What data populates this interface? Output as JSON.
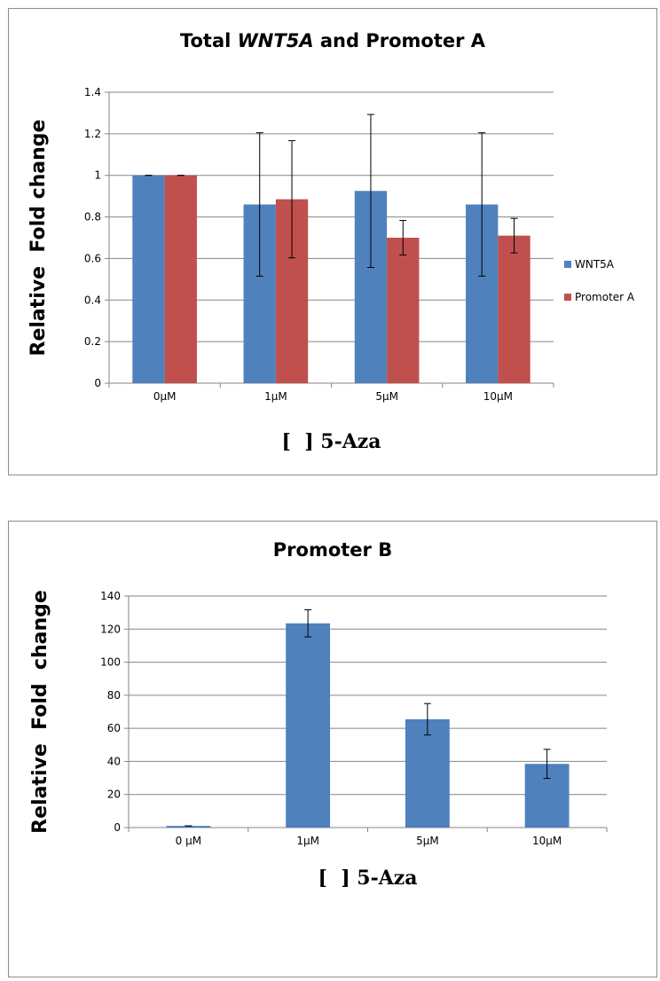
{
  "chart_data": [
    {
      "type": "bar",
      "title": "Total WNT5A and Promoter A",
      "title_parts": {
        "prefix": "Total ",
        "italic": "WNT5A",
        "suffix": " and Promoter A"
      },
      "categories": [
        "0µM",
        "1µM",
        "5µM",
        "10µM"
      ],
      "series": [
        {
          "name": "WNT5A",
          "color": "#4f81bd",
          "values": [
            1.0,
            0.86,
            0.925,
            0.86
          ],
          "errors": [
            0.0,
            0.345,
            0.368,
            0.345
          ]
        },
        {
          "name": "Promoter A",
          "color": "#c0504d",
          "values": [
            1.0,
            0.885,
            0.7,
            0.71
          ],
          "errors": [
            0.0,
            0.282,
            0.083,
            0.083
          ]
        }
      ],
      "xlabel": "[  ] 5-Aza",
      "ylabel": "Relative  Fold change",
      "ylim": [
        0,
        1.4
      ],
      "yticks": [
        "0",
        "0.2",
        "0.4",
        "0.6",
        "0.8",
        "1",
        "1.2",
        "1.4"
      ],
      "ytick_values": [
        0,
        0.2,
        0.4,
        0.6,
        0.8,
        1.0,
        1.2,
        1.4
      ],
      "grid": true,
      "legend_position": "right"
    },
    {
      "type": "bar",
      "title": "Promoter B",
      "categories": [
        "0 µM",
        "1µM",
        "5µM",
        "10µM"
      ],
      "series": [
        {
          "name": "",
          "color": "#4f81bd",
          "values": [
            1,
            123.5,
            65.5,
            38.5
          ],
          "errors": [
            0,
            8.2,
            9.5,
            8.8
          ]
        }
      ],
      "xlabel": "[  ] 5-Aza",
      "ylabel": "Relative  Fold  change",
      "ylim": [
        0,
        140
      ],
      "yticks": [
        "0",
        "20",
        "40",
        "60",
        "80",
        "100",
        "120",
        "140"
      ],
      "ytick_values": [
        0,
        20,
        40,
        60,
        80,
        100,
        120,
        140
      ],
      "grid": true
    }
  ]
}
